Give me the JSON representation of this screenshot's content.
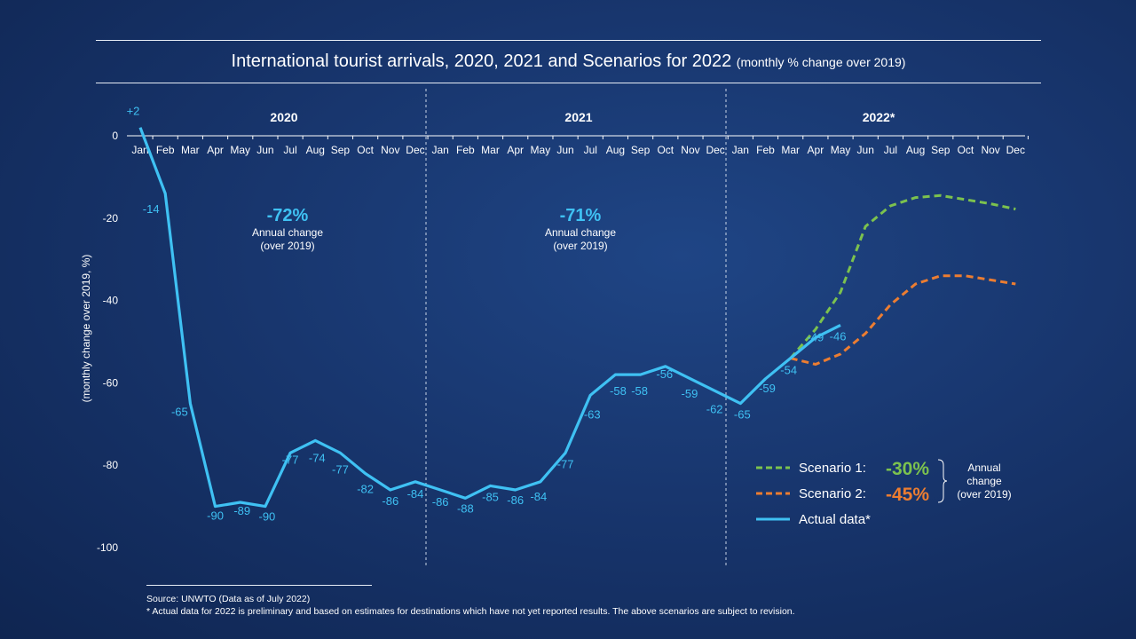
{
  "title": "International tourist arrivals, 2020, 2021 and Scenarios for 2022",
  "subtitle": "(monthly % change over 2019)",
  "chart_data": {
    "type": "line",
    "title": "International tourist arrivals, 2020, 2021 and Scenarios for 2022",
    "ylabel": "(monthly change over 2019, %)",
    "ylim": [
      -100,
      0
    ],
    "yticks": [
      0,
      -20,
      -40,
      -60,
      -80,
      -100
    ],
    "grid": false,
    "months": [
      "Jan",
      "Feb",
      "Mar",
      "Apr",
      "May",
      "Jun",
      "Jul",
      "Aug",
      "Sep",
      "Oct",
      "Nov",
      "Dec"
    ],
    "year_labels": [
      "2020",
      "2021",
      "2022*"
    ],
    "annual_notes": [
      {
        "year": "2020",
        "value": "-72%",
        "label1": "Annual change",
        "label2": "(over 2019)"
      },
      {
        "year": "2021",
        "value": "-71%",
        "label1": "Annual change",
        "label2": "(over 2019)"
      }
    ],
    "series": [
      {
        "name": "Actual data*",
        "color": "#3fc1f3",
        "style": "solid",
        "values": [
          2,
          -14,
          -65,
          -90,
          -89,
          -90,
          -77,
          -74,
          -77,
          -82,
          -86,
          -84,
          -86,
          -88,
          -85,
          -86,
          -84,
          -77,
          -63,
          -58,
          -58,
          -56,
          -59,
          -62,
          -65,
          -59,
          -54,
          -49,
          -46
        ],
        "labels": [
          "+2",
          "-14",
          "-65",
          "-90",
          "-89",
          "-90",
          "-77",
          "-74",
          "-77",
          "-82",
          "-86",
          "-84",
          "-86",
          "-88",
          "-85",
          "-86",
          "-84",
          "-77",
          "-63",
          "-58",
          "-58",
          "-56",
          "-59",
          "-62",
          "-65",
          "-59",
          "-54",
          "-49",
          "-46"
        ]
      },
      {
        "name": "Scenario 1:",
        "color": "#7cc24e",
        "style": "dashed",
        "start_index": 26,
        "values": [
          -54,
          -47,
          -38,
          -22,
          -17,
          -15,
          -14.5,
          -15.5,
          -16.5,
          -17.8
        ]
      },
      {
        "name": "Scenario 2:",
        "color": "#ec7d31",
        "style": "dashed",
        "start_index": 26,
        "values": [
          -54,
          -55.5,
          -53,
          -48,
          -41,
          -36,
          -34,
          -34,
          -35,
          -36
        ]
      }
    ],
    "legend": {
      "position": "bottom-right",
      "scenario1_value": "-30%",
      "scenario2_value": "-45%",
      "annual_label1": "Annual",
      "annual_label2": "change",
      "annual_label3": "(over 2019)"
    }
  },
  "source": {
    "line1": "Source: UNWTO (Data as of July 2022)",
    "line2": "* Actual data for 2022 is preliminary and based on estimates for destinations which have not yet reported results. The above scenarios are subject to revision."
  }
}
